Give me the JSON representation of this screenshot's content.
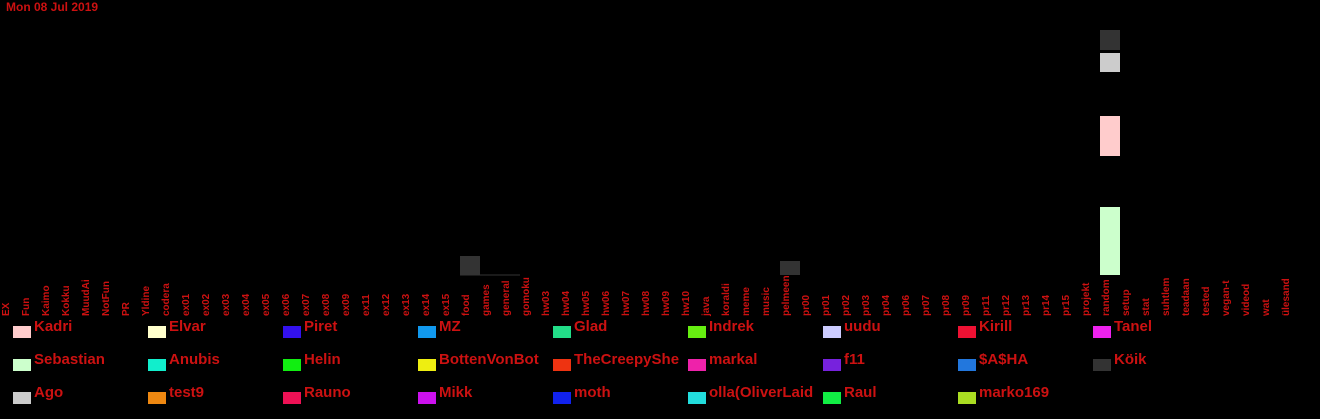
{
  "chart_data": {
    "type": "bar",
    "stacked": true,
    "title": "Mon 08 Jul 2019",
    "xlabel": "",
    "ylabel": "",
    "grid": false,
    "legend_position": "bottom",
    "categories": [
      "EX",
      "Fun",
      "Kaimo",
      "Kokku",
      "MuudAi",
      "NotFun",
      "PR",
      "Yldine",
      "codera",
      "ex01",
      "ex02",
      "ex03",
      "ex04",
      "ex05",
      "ex06",
      "ex07",
      "ex08",
      "ex09",
      "ex11",
      "ex12",
      "ex13",
      "ex14",
      "ex15",
      "food",
      "games",
      "general",
      "gomoku",
      "hw03",
      "hw04",
      "hw05",
      "hw06",
      "hw07",
      "hw08",
      "hw09",
      "hw10",
      "java",
      "koraldi",
      "meme",
      "music",
      "pelmeen",
      "pr00",
      "pr01",
      "pr02",
      "pr03",
      "pr04",
      "pr06",
      "pr07",
      "pr08",
      "pr09",
      "pr11",
      "pr12",
      "pr13",
      "pr14",
      "pr15",
      "projekt",
      "random",
      "setup",
      "stat",
      "suhtlem",
      "teadaan",
      "tested",
      "vegan-t",
      "videod",
      "wat",
      "ülesand"
    ],
    "series": [
      {
        "name": "Kadri",
        "color": "#ffcccc",
        "values": {
          "random": 40
        }
      },
      {
        "name": "Elvar",
        "color": "#ffffcc",
        "values": {}
      },
      {
        "name": "Piret",
        "color": "#3311ee",
        "values": {}
      },
      {
        "name": "MZ",
        "color": "#1199ee",
        "values": {}
      },
      {
        "name": "Glad",
        "color": "#22dd88",
        "values": {}
      },
      {
        "name": "Indrek",
        "color": "#66ee11",
        "values": {}
      },
      {
        "name": "uudu",
        "color": "#ccccff",
        "values": {}
      },
      {
        "name": "Kirill",
        "color": "#ee1133",
        "values": {}
      },
      {
        "name": "Tanel",
        "color": "#ee22ee",
        "values": {}
      },
      {
        "name": "Sebastian",
        "color": "#ccffcc",
        "values": {
          "random": 68
        }
      },
      {
        "name": "Anubis",
        "color": "#11eecc",
        "values": {}
      },
      {
        "name": "Helin",
        "color": "#11ee11",
        "values": {}
      },
      {
        "name": "BottenVonBot",
        "color": "#eeee11",
        "values": {}
      },
      {
        "name": "TheCreepyShe",
        "color": "#ee3311",
        "values": {}
      },
      {
        "name": "markal",
        "color": "#ee22aa",
        "values": {}
      },
      {
        "name": "f11",
        "color": "#7722dd",
        "values": {}
      },
      {
        "name": "$A$HA",
        "color": "#2277dd",
        "values": {}
      },
      {
        "name": "Köik",
        "color": "#333333",
        "values": {
          "food": 19,
          "pelmeen": 14,
          "random": 20
        }
      },
      {
        "name": "Ago",
        "color": "#cccccc",
        "values": {
          "random": 19
        }
      },
      {
        "name": "test9",
        "color": "#ee8811",
        "values": {}
      },
      {
        "name": "Rauno",
        "color": "#ee1155",
        "values": {}
      },
      {
        "name": "Mikk",
        "color": "#cc11ee",
        "values": {}
      },
      {
        "name": "moth",
        "color": "#1122ee",
        "values": {}
      },
      {
        "name": "olla(OliverLaid",
        "color": "#22dddd",
        "values": {}
      },
      {
        "name": "Raul",
        "color": "#11ee44",
        "values": {}
      },
      {
        "name": "marko169",
        "color": "#aadd22",
        "values": {}
      }
    ],
    "stack_order_random": [
      "Sebastian",
      "Kadri",
      "Ago",
      "Köik"
    ],
    "stack_values_random": [
      68,
      40,
      19,
      20
    ],
    "gaps_random": [
      0,
      51,
      44,
      3
    ],
    "ylim": [
      0,
      260
    ]
  }
}
